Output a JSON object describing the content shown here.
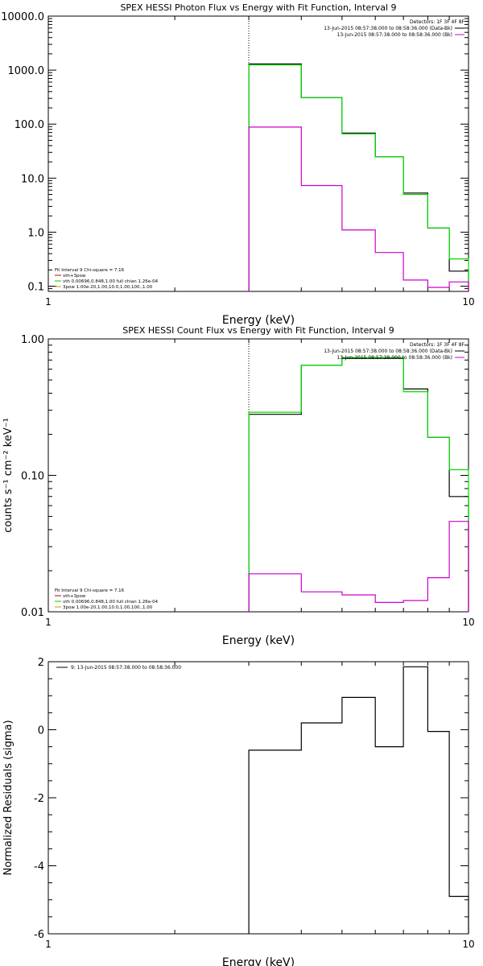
{
  "chart_data": [
    {
      "type": "line",
      "title": "SPEX HESSI Photon Flux vs Energy with Fit Function, Interval 9",
      "xlabel": "Energy (keV)",
      "ylabel": "",
      "x_scale": "log",
      "y_scale": "log",
      "xlim": [
        1,
        10
      ],
      "ylim": [
        0.08,
        10000
      ],
      "x_ticks": [
        {
          "v": 1,
          "label": "1"
        },
        {
          "v": 10,
          "label": "10"
        }
      ],
      "y_ticks": [
        {
          "v": 0.1,
          "label": "0.1"
        },
        {
          "v": 1,
          "label": "1.0"
        },
        {
          "v": 10,
          "label": "10.0"
        },
        {
          "v": 100,
          "label": "100.0"
        },
        {
          "v": 1000,
          "label": "1000.0"
        },
        {
          "v": 10000,
          "label": "10000.0"
        }
      ],
      "vline_x": 3,
      "legend_top": [
        {
          "text": "Detectors: 1F 3F 4F 8F",
          "color": "#000000"
        },
        {
          "text": "13-Jun-2015 08:57:38.000 to 08:58:36.000 (Data-Bk)",
          "color": "#000000"
        },
        {
          "text": "13-Jun-2015 08:57:38.000 to 08:58:36.000 (Bk)",
          "color": "#cc00cc"
        }
      ],
      "legend_bottom": [
        {
          "text": "Fit Interval 9   Chi-square = 7.16",
          "color": "#000000"
        },
        {
          "text": "vth+3pow",
          "color": "#cc0000"
        },
        {
          "text": "vth 0.00696,0.848,1.00  full chian 1.26e-04",
          "color": "#00cc00"
        },
        {
          "text": "3pow 1.00e-20,1.00,10.0,1.00,100.,1.00",
          "color": "#cc9900"
        }
      ],
      "edges": [
        3,
        4,
        5,
        6,
        7,
        8,
        9,
        10
      ],
      "series": [
        {
          "color": "#000000",
          "values": [
            1300,
            310,
            68,
            25,
            5.3,
            1.2,
            0.19
          ]
        },
        {
          "color": "#00dd00",
          "values": [
            1250,
            310,
            66,
            25,
            5.0,
            1.2,
            0.32
          ]
        },
        {
          "color": "#cc00cc",
          "values": [
            88,
            7.3,
            1.1,
            0.42,
            0.13,
            0.095,
            0.12
          ]
        }
      ]
    },
    {
      "type": "line",
      "title": "SPEX HESSI Count Flux vs Energy with Fit Function, Interval 9",
      "xlabel": "Energy (keV)",
      "ylabel": "counts s⁻¹ cm⁻² keV⁻¹",
      "x_scale": "log",
      "y_scale": "log",
      "xlim": [
        1,
        10
      ],
      "ylim": [
        0.01,
        1.0
      ],
      "x_ticks": [
        {
          "v": 1,
          "label": "1"
        },
        {
          "v": 10,
          "label": "10"
        }
      ],
      "y_ticks": [
        {
          "v": 0.01,
          "label": "0.01"
        },
        {
          "v": 0.1,
          "label": "0.10"
        },
        {
          "v": 1,
          "label": "1.00"
        }
      ],
      "vline_x": 3,
      "legend_top": [
        {
          "text": "Detectors: 1F 3F 4F 8F",
          "color": "#000000"
        },
        {
          "text": "13-Jun-2015 08:57:38.000 to 08:58:36.000 (Data-Bk)",
          "color": "#000000"
        },
        {
          "text": "13-Jun-2015 08:57:38.000 to 08:58:36.000 (Bk)",
          "color": "#cc00cc"
        }
      ],
      "legend_bottom": [
        {
          "text": "Fit Interval 9   Chi-square = 7.16",
          "color": "#000000"
        },
        {
          "text": "vth+3pow",
          "color": "#cc0000"
        },
        {
          "text": "vth 0.00696,0.848,1.00  full chian 1.26e-04",
          "color": "#00cc00"
        },
        {
          "text": "3pow 1.00e-20,1.00,10.0,1.00,100.,1.00",
          "color": "#cc9900"
        }
      ],
      "edges": [
        3,
        4,
        5,
        6,
        7,
        8,
        9,
        10
      ],
      "series": [
        {
          "color": "#000000",
          "values": [
            0.28,
            0.64,
            0.72,
            0.72,
            0.43,
            0.19,
            0.07
          ]
        },
        {
          "color": "#00dd00",
          "values": [
            0.29,
            0.64,
            0.73,
            0.73,
            0.41,
            0.19,
            0.11
          ]
        },
        {
          "color": "#cc00cc",
          "values": [
            0.019,
            0.014,
            0.0133,
            0.0117,
            0.0121,
            0.0178,
            0.046
          ]
        }
      ]
    },
    {
      "type": "line",
      "title": "",
      "xlabel": "Energy (keV)",
      "ylabel": "Normalized Residuals (sigma)",
      "x_scale": "log",
      "y_scale": "linear",
      "xlim": [
        1,
        10
      ],
      "ylim": [
        -6,
        2
      ],
      "x_ticks": [
        {
          "v": 1,
          "label": "1"
        },
        {
          "v": 10,
          "label": "10"
        }
      ],
      "y_ticks": [
        {
          "v": -6,
          "label": "-6"
        },
        {
          "v": -4,
          "label": "-4"
        },
        {
          "v": -2,
          "label": "-2"
        },
        {
          "v": 0,
          "label": "0"
        },
        {
          "v": 2,
          "label": "2"
        }
      ],
      "legend_top": [
        {
          "text": "9: 13-Jun-2015 08:57:38.000 to 08:58:36.000",
          "color": "#000000"
        }
      ],
      "edges": [
        3,
        4,
        5,
        6,
        7,
        8,
        9,
        10
      ],
      "series": [
        {
          "color": "#000000",
          "values": [
            -0.6,
            0.2,
            0.95,
            -0.5,
            1.85,
            -0.05,
            -4.9
          ]
        }
      ]
    }
  ]
}
